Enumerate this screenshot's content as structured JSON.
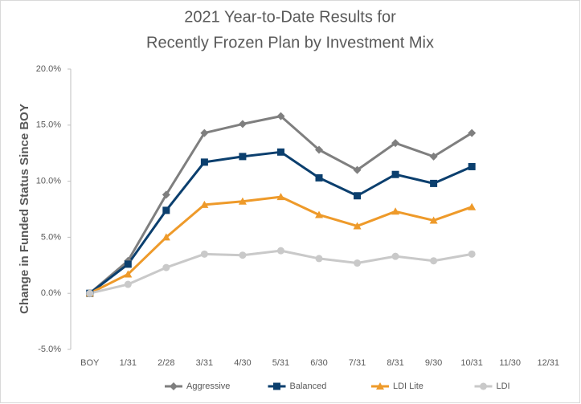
{
  "chart_data": {
    "type": "line",
    "title": [
      "2021 Year-to-Date Results for",
      "Recently Frozen Plan by Investment Mix"
    ],
    "y_label": "Change in Funded Status Since BOY",
    "categories": [
      "BOY",
      "1/31",
      "2/28",
      "3/31",
      "4/30",
      "5/31",
      "6/30",
      "7/31",
      "8/31",
      "9/30",
      "10/31",
      "11/30",
      "12/31"
    ],
    "series": [
      {
        "name": "Aggressive",
        "color": "#7f7f7f",
        "marker": "diamond",
        "values": [
          0,
          2.9,
          8.8,
          14.3,
          15.1,
          15.8,
          12.8,
          11.0,
          13.4,
          12.2,
          14.3,
          null,
          null
        ]
      },
      {
        "name": "Balanced",
        "color": "#0b3f6e",
        "marker": "square",
        "values": [
          0,
          2.6,
          7.4,
          11.7,
          12.2,
          12.6,
          10.3,
          8.7,
          10.6,
          9.8,
          11.3,
          null,
          null
        ]
      },
      {
        "name": "LDI Lite",
        "color": "#ee9a2a",
        "marker": "triangle",
        "values": [
          0,
          1.7,
          5.0,
          7.9,
          8.2,
          8.6,
          7.0,
          6.0,
          7.3,
          6.5,
          7.7,
          null,
          null
        ]
      },
      {
        "name": "LDI",
        "color": "#c9c9c9",
        "marker": "circle",
        "values": [
          0,
          0.8,
          2.3,
          3.5,
          3.4,
          3.8,
          3.1,
          2.7,
          3.3,
          2.9,
          3.5,
          null,
          null
        ]
      }
    ],
    "ylim": [
      -5,
      20
    ],
    "yticks": [
      {
        "value": -5,
        "label": "-5.0%"
      },
      {
        "value": 0,
        "label": "0.0%"
      },
      {
        "value": 5,
        "label": "5.0%"
      },
      {
        "value": 10,
        "label": "10.0%"
      },
      {
        "value": 15,
        "label": "15.0%"
      },
      {
        "value": 20,
        "label": "20.0%"
      }
    ],
    "grid": false,
    "legend": "bottom"
  }
}
